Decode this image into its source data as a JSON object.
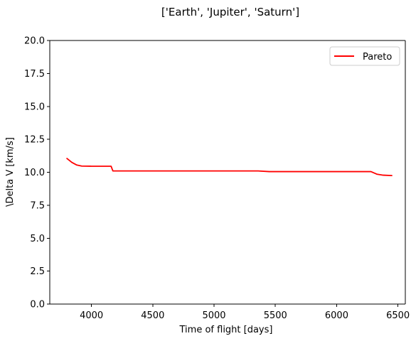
{
  "chart_data": {
    "type": "line",
    "title": "['Earth', 'Jupiter', 'Saturn']",
    "xlabel": "Time of flight [days]",
    "ylabel": "\\Delta V [km/s]",
    "xlim": [
      3660,
      6560
    ],
    "ylim": [
      0,
      20
    ],
    "xticks": [
      4000,
      4500,
      5000,
      5500,
      6000,
      6500
    ],
    "yticks": [
      0.0,
      2.5,
      5.0,
      7.5,
      10.0,
      12.5,
      15.0,
      17.5,
      20.0
    ],
    "xtick_labels": [
      "4000",
      "4500",
      "5000",
      "5500",
      "6000",
      "6500"
    ],
    "ytick_labels": [
      "0.0",
      "2.5",
      "5.0",
      "7.5",
      "10.0",
      "12.5",
      "15.0",
      "17.5",
      "20.0"
    ],
    "grid": false,
    "legend": "top-right",
    "series": [
      {
        "name": "Pareto",
        "color": "#ff0000",
        "x": [
          3800,
          3840,
          3880,
          3920,
          4000,
          4100,
          4160,
          4175,
          4200,
          4500,
          5000,
          5360,
          5450,
          6000,
          6280,
          6330,
          6380,
          6450
        ],
        "y": [
          11.05,
          10.75,
          10.55,
          10.47,
          10.46,
          10.46,
          10.46,
          10.1,
          10.1,
          10.1,
          10.1,
          10.1,
          10.05,
          10.05,
          10.05,
          9.85,
          9.78,
          9.75
        ]
      }
    ]
  }
}
